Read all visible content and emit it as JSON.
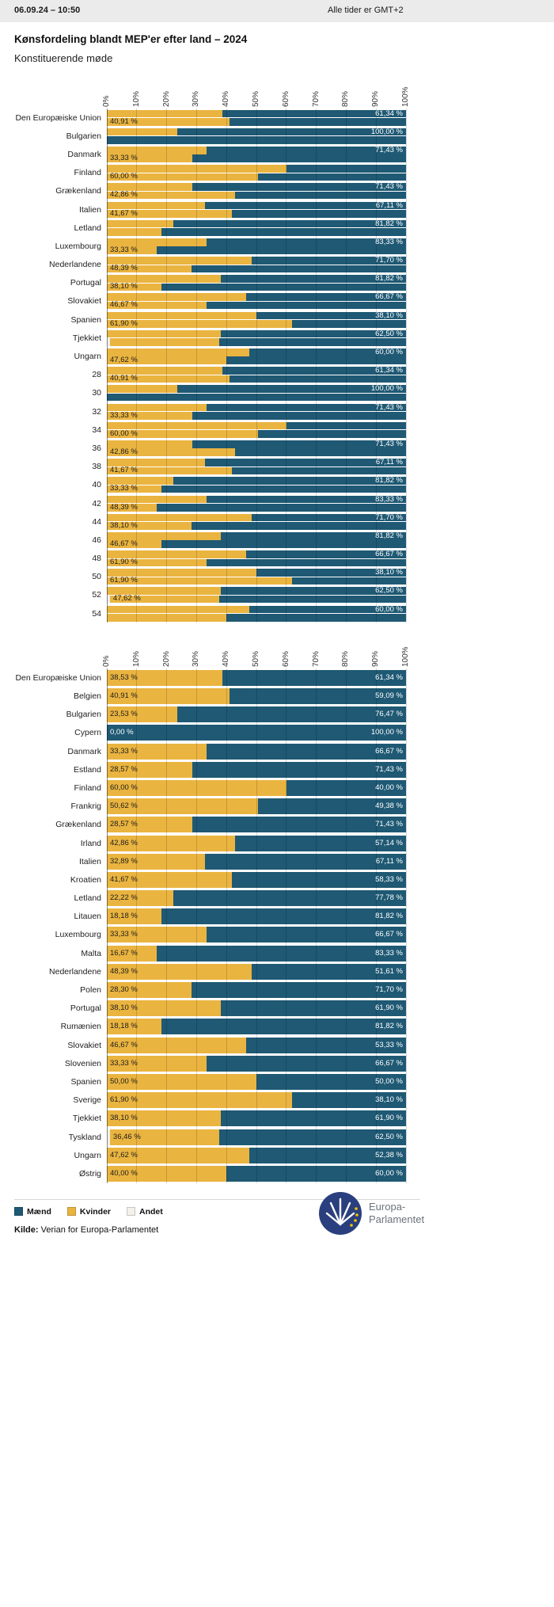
{
  "header": {
    "datetime": "06.09.24 – 10:50",
    "timezone_note": "Alle tider er GMT+2"
  },
  "title": "Kønsfordeling blandt MEP'er efter land – 2024",
  "subtitle": "Konstituerende møde",
  "colors": {
    "men": "#1f5974",
    "women": "#eab440",
    "other": "#f4f1ea",
    "grid": "rgba(0,0,0,0.16)",
    "axis": "rgba(0,0,0,0.45)"
  },
  "axis_ticks": [
    "0%",
    "10%",
    "20%",
    "30%",
    "40%",
    "50%",
    "60%",
    "70%",
    "80%",
    "90%",
    "100%"
  ],
  "legend": [
    {
      "label": "Mænd",
      "color": "#1f5974"
    },
    {
      "label": "Kvinder",
      "color": "#eab440"
    },
    {
      "label": "Andet",
      "color": "#f4f1ea"
    }
  ],
  "source": {
    "label": "Kilde:",
    "text": "Verian for Europa-Parlamentet"
  },
  "logo": {
    "line1": "Europa-",
    "line2": "Parlamentet"
  },
  "chart_data": [
    {
      "type": "bar",
      "orientation": "horizontal",
      "stacked": true,
      "x_range": [
        0,
        100
      ],
      "tick_step": 10,
      "series_names": [
        "Andet",
        "Kvinder",
        "Mænd"
      ],
      "note": "Each category slot shows two thin stacked bars (percent kvinder/maend/andet).",
      "rows": [
        {
          "category": "Den Europæiske Union",
          "upper": {
            "andet": 0,
            "kvinder": 38.53,
            "maend": 61.34
          },
          "lower": {
            "andet": 0,
            "kvinder": 40.91,
            "maend": 59.09
          },
          "label_left": "40,91 %",
          "label_right": "61,34 %"
        },
        {
          "category": "Bulgarien",
          "upper": {
            "andet": 0,
            "kvinder": 23.53,
            "maend": 76.47
          },
          "lower": {
            "andet": 0,
            "kvinder": 0,
            "maend": 100
          },
          "label_left": "",
          "label_right": "100,00 %"
        },
        {
          "category": "Danmark",
          "upper": {
            "andet": 0,
            "kvinder": 33.33,
            "maend": 66.67
          },
          "lower": {
            "andet": 0,
            "kvinder": 28.57,
            "maend": 71.43
          },
          "label_left": "33,33 %",
          "label_right": "71,43 %"
        },
        {
          "category": "Finland",
          "upper": {
            "andet": 0,
            "kvinder": 60,
            "maend": 40
          },
          "lower": {
            "andet": 0,
            "kvinder": 50.62,
            "maend": 49.38
          },
          "label_left": "60,00 %",
          "label_right": ""
        },
        {
          "category": "Grækenland",
          "upper": {
            "andet": 0,
            "kvinder": 28.57,
            "maend": 71.43
          },
          "lower": {
            "andet": 0,
            "kvinder": 42.86,
            "maend": 57.14
          },
          "label_left": "42,86 %",
          "label_right": "71,43 %"
        },
        {
          "category": "Italien",
          "upper": {
            "andet": 0,
            "kvinder": 32.89,
            "maend": 67.11
          },
          "lower": {
            "andet": 0,
            "kvinder": 41.67,
            "maend": 58.33
          },
          "label_left": "41,67 %",
          "label_right": "67,11 %"
        },
        {
          "category": "Letland",
          "upper": {
            "andet": 0,
            "kvinder": 22.22,
            "maend": 77.78
          },
          "lower": {
            "andet": 0,
            "kvinder": 18.18,
            "maend": 81.82
          },
          "label_left": "",
          "label_right": "81,82 %"
        },
        {
          "category": "Luxembourg",
          "upper": {
            "andet": 0,
            "kvinder": 33.33,
            "maend": 66.67
          },
          "lower": {
            "andet": 0,
            "kvinder": 16.67,
            "maend": 83.33
          },
          "label_left": "33,33 %",
          "label_right": "83,33 %"
        },
        {
          "category": "Nederlandene",
          "upper": {
            "andet": 0,
            "kvinder": 48.39,
            "maend": 51.61
          },
          "lower": {
            "andet": 0,
            "kvinder": 28.3,
            "maend": 71.7
          },
          "label_left": "48,39 %",
          "label_right": "71,70 %"
        },
        {
          "category": "Portugal",
          "upper": {
            "andet": 0,
            "kvinder": 38.1,
            "maend": 61.9
          },
          "lower": {
            "andet": 0,
            "kvinder": 18.18,
            "maend": 81.82
          },
          "label_left": "38,10 %",
          "label_right": "81,82 %"
        },
        {
          "category": "Slovakiet",
          "upper": {
            "andet": 0,
            "kvinder": 46.67,
            "maend": 53.33
          },
          "lower": {
            "andet": 0,
            "kvinder": 33.33,
            "maend": 66.67
          },
          "label_left": "46,67 %",
          "label_right": "66,67 %"
        },
        {
          "category": "Spanien",
          "upper": {
            "andet": 0,
            "kvinder": 50,
            "maend": 50
          },
          "lower": {
            "andet": 0,
            "kvinder": 61.9,
            "maend": 38.1
          },
          "label_left": "61,90 %",
          "label_right": "38,10 %"
        },
        {
          "category": "Tjekkiet",
          "upper": {
            "andet": 0,
            "kvinder": 38.1,
            "maend": 61.9
          },
          "lower": {
            "andet": 1.04,
            "kvinder": 36.46,
            "maend": 62.5
          },
          "label_left": "",
          "label_right": "62,50 %"
        },
        {
          "category": "Ungarn",
          "upper": {
            "andet": 0,
            "kvinder": 47.62,
            "maend": 52.38
          },
          "lower": {
            "andet": 0,
            "kvinder": 40,
            "maend": 60
          },
          "label_left": "47,62 %",
          "label_right": "60,00 %"
        },
        {
          "category": "28",
          "upper": {
            "andet": 0,
            "kvinder": 38.53,
            "maend": 61.34
          },
          "lower": {
            "andet": 0,
            "kvinder": 40.91,
            "maend": 59.09
          },
          "label_left": "40,91 %",
          "label_right": "61,34 %"
        },
        {
          "category": "30",
          "upper": {
            "andet": 0,
            "kvinder": 23.53,
            "maend": 76.47
          },
          "lower": {
            "andet": 0,
            "kvinder": 0,
            "maend": 100
          },
          "label_left": "",
          "label_right": "100,00 %"
        },
        {
          "category": "32",
          "upper": {
            "andet": 0,
            "kvinder": 33.33,
            "maend": 66.67
          },
          "lower": {
            "andet": 0,
            "kvinder": 28.57,
            "maend": 71.43
          },
          "label_left": "33,33 %",
          "label_right": "71,43 %"
        },
        {
          "category": "34",
          "upper": {
            "andet": 0,
            "kvinder": 60,
            "maend": 40
          },
          "lower": {
            "andet": 0,
            "kvinder": 50.62,
            "maend": 49.38
          },
          "label_left": "60,00 %",
          "label_right": ""
        },
        {
          "category": "36",
          "upper": {
            "andet": 0,
            "kvinder": 28.57,
            "maend": 71.43
          },
          "lower": {
            "andet": 0,
            "kvinder": 42.86,
            "maend": 57.14
          },
          "label_left": "42,86 %",
          "label_right": "71,43 %"
        },
        {
          "category": "38",
          "upper": {
            "andet": 0,
            "kvinder": 32.89,
            "maend": 67.11
          },
          "lower": {
            "andet": 0,
            "kvinder": 41.67,
            "maend": 58.33
          },
          "label_left": "41,67 %",
          "label_right": "67,11 %"
        },
        {
          "category": "40",
          "upper": {
            "andet": 0,
            "kvinder": 22.22,
            "maend": 77.78
          },
          "lower": {
            "andet": 0,
            "kvinder": 18.18,
            "maend": 81.82
          },
          "label_left": "33,33 %",
          "label_right": "81,82 %"
        },
        {
          "category": "42",
          "upper": {
            "andet": 0,
            "kvinder": 33.33,
            "maend": 66.67
          },
          "lower": {
            "andet": 0,
            "kvinder": 16.67,
            "maend": 83.33
          },
          "label_left": "48,39 %",
          "label_right": "83,33 %"
        },
        {
          "category": "44",
          "upper": {
            "andet": 0,
            "kvinder": 48.39,
            "maend": 51.61
          },
          "lower": {
            "andet": 0,
            "kvinder": 28.3,
            "maend": 71.7
          },
          "label_left": "38,10 %",
          "label_right": "71,70 %"
        },
        {
          "category": "46",
          "upper": {
            "andet": 0,
            "kvinder": 38.1,
            "maend": 61.9
          },
          "lower": {
            "andet": 0,
            "kvinder": 18.18,
            "maend": 81.82
          },
          "label_left": "46,67 %",
          "label_right": "81,82 %"
        },
        {
          "category": "48",
          "upper": {
            "andet": 0,
            "kvinder": 46.67,
            "maend": 53.33
          },
          "lower": {
            "andet": 0,
            "kvinder": 33.33,
            "maend": 66.67
          },
          "label_left": "61,90 %",
          "label_right": "66,67 %"
        },
        {
          "category": "50",
          "upper": {
            "andet": 0,
            "kvinder": 50,
            "maend": 50
          },
          "lower": {
            "andet": 0,
            "kvinder": 61.9,
            "maend": 38.1
          },
          "label_left": "61,90 %",
          "label_right": "38,10 %"
        },
        {
          "category": "52",
          "upper": {
            "andet": 0,
            "kvinder": 38.1,
            "maend": 61.9
          },
          "lower": {
            "andet": 1.04,
            "kvinder": 36.46,
            "maend": 62.5
          },
          "label_left": "47,62 %",
          "label_right": "62,50 %"
        },
        {
          "category": "54",
          "upper": {
            "andet": 0,
            "kvinder": 47.62,
            "maend": 52.38
          },
          "lower": {
            "andet": 0,
            "kvinder": 40,
            "maend": 60
          },
          "label_left": "",
          "label_right": "60,00 %"
        }
      ]
    },
    {
      "type": "bar",
      "orientation": "horizontal",
      "stacked": true,
      "x_range": [
        0,
        100
      ],
      "tick_step": 10,
      "series_names": [
        "Andet",
        "Kvinder",
        "Mænd"
      ],
      "rows": [
        {
          "category": "Den Europæiske Union",
          "andet": 0,
          "kvinder": 38.53,
          "maend": 61.34,
          "label_left": "38,53 %",
          "label_right": "61,34 %"
        },
        {
          "category": "Belgien",
          "andet": 0,
          "kvinder": 40.91,
          "maend": 59.09,
          "label_left": "40,91 %",
          "label_right": "59,09 %"
        },
        {
          "category": "Bulgarien",
          "andet": 0,
          "kvinder": 23.53,
          "maend": 76.47,
          "label_left": "23,53 %",
          "label_right": "76,47 %"
        },
        {
          "category": "Cypern",
          "andet": 0,
          "kvinder": 0,
          "maend": 100,
          "label_left": "0,00 %",
          "label_right": "100,00 %"
        },
        {
          "category": "Danmark",
          "andet": 0,
          "kvinder": 33.33,
          "maend": 66.67,
          "label_left": "33,33 %",
          "label_right": "66,67 %"
        },
        {
          "category": "Estland",
          "andet": 0,
          "kvinder": 28.57,
          "maend": 71.43,
          "label_left": "28,57 %",
          "label_right": "71,43 %"
        },
        {
          "category": "Finland",
          "andet": 0,
          "kvinder": 60,
          "maend": 40,
          "label_left": "60,00 %",
          "label_right": "40,00 %"
        },
        {
          "category": "Frankrig",
          "andet": 0,
          "kvinder": 50.62,
          "maend": 49.38,
          "label_left": "50,62 %",
          "label_right": "49,38 %"
        },
        {
          "category": "Grækenland",
          "andet": 0,
          "kvinder": 28.57,
          "maend": 71.43,
          "label_left": "28,57 %",
          "label_right": "71,43 %"
        },
        {
          "category": "Irland",
          "andet": 0,
          "kvinder": 42.86,
          "maend": 57.14,
          "label_left": "42,86 %",
          "label_right": "57,14 %"
        },
        {
          "category": "Italien",
          "andet": 0,
          "kvinder": 32.89,
          "maend": 67.11,
          "label_left": "32,89 %",
          "label_right": "67,11 %"
        },
        {
          "category": "Kroatien",
          "andet": 0,
          "kvinder": 41.67,
          "maend": 58.33,
          "label_left": "41,67 %",
          "label_right": "58,33 %"
        },
        {
          "category": "Letland",
          "andet": 0,
          "kvinder": 22.22,
          "maend": 77.78,
          "label_left": "22,22 %",
          "label_right": "77,78 %"
        },
        {
          "category": "Litauen",
          "andet": 0,
          "kvinder": 18.18,
          "maend": 81.82,
          "label_left": "18,18 %",
          "label_right": "81,82 %"
        },
        {
          "category": "Luxembourg",
          "andet": 0,
          "kvinder": 33.33,
          "maend": 66.67,
          "label_left": "33,33 %",
          "label_right": "66,67 %"
        },
        {
          "category": "Malta",
          "andet": 0,
          "kvinder": 16.67,
          "maend": 83.33,
          "label_left": "16,67 %",
          "label_right": "83,33 %"
        },
        {
          "category": "Nederlandene",
          "andet": 0,
          "kvinder": 48.39,
          "maend": 51.61,
          "label_left": "48,39 %",
          "label_right": "51,61 %"
        },
        {
          "category": "Polen",
          "andet": 0,
          "kvinder": 28.3,
          "maend": 71.7,
          "label_left": "28,30 %",
          "label_right": "71,70 %"
        },
        {
          "category": "Portugal",
          "andet": 0,
          "kvinder": 38.1,
          "maend": 61.9,
          "label_left": "38,10 %",
          "label_right": "61,90 %"
        },
        {
          "category": "Rumænien",
          "andet": 0,
          "kvinder": 18.18,
          "maend": 81.82,
          "label_left": "18,18 %",
          "label_right": "81,82 %"
        },
        {
          "category": "Slovakiet",
          "andet": 0,
          "kvinder": 46.67,
          "maend": 53.33,
          "label_left": "46,67 %",
          "label_right": "53,33 %"
        },
        {
          "category": "Slovenien",
          "andet": 0,
          "kvinder": 33.33,
          "maend": 66.67,
          "label_left": "33,33 %",
          "label_right": "66,67 %"
        },
        {
          "category": "Spanien",
          "andet": 0,
          "kvinder": 50,
          "maend": 50,
          "label_left": "50,00 %",
          "label_right": "50,00 %"
        },
        {
          "category": "Sverige",
          "andet": 0,
          "kvinder": 61.9,
          "maend": 38.1,
          "label_left": "61,90 %",
          "label_right": "38,10 %"
        },
        {
          "category": "Tjekkiet",
          "andet": 0,
          "kvinder": 38.1,
          "maend": 61.9,
          "label_left": "38,10 %",
          "label_right": "61,90 %"
        },
        {
          "category": "Tyskland",
          "andet": 1.04,
          "kvinder": 36.46,
          "maend": 62.5,
          "label_left": "36,46 %",
          "label_right": "62,50 %"
        },
        {
          "category": "Ungarn",
          "andet": 0,
          "kvinder": 47.62,
          "maend": 52.38,
          "label_left": "47,62 %",
          "label_right": "52,38 %"
        },
        {
          "category": "Østrig",
          "andet": 0,
          "kvinder": 40,
          "maend": 60,
          "label_left": "40,00 %",
          "label_right": "60,00 %"
        }
      ]
    }
  ]
}
